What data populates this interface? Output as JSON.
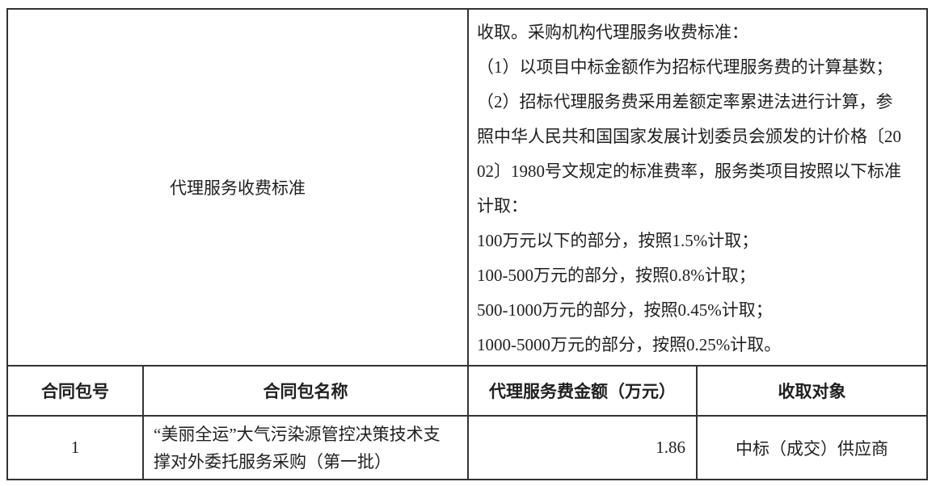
{
  "table": {
    "fee_standard": {
      "label": "代理服务收费标准",
      "lines": [
        "收取。采购机构代理服务收费标准：",
        "（1）以项目中标金额作为招标代理服务费的计算基数；",
        "（2）招标代理服务费采用差额定率累进法进行计算，参",
        "照中华人民共和国国家发展计划委员会颁发的计价格〔20",
        "02〕1980号文规定的标准费率，服务类项目按照以下标准",
        "计取：",
        "100万元以下的部分，按照1.5%计取；",
        "100-500万元的部分，按照0.8%计取；",
        "500-1000万元的部分，按照0.45%计取；",
        "1000-5000万元的部分，按照0.25%计取。"
      ]
    },
    "headers": {
      "package_no": "合同包号",
      "package_name": "合同包名称",
      "fee_amount": "代理服务费金额（万元）",
      "charge_target": "收取对象"
    },
    "rows": [
      {
        "package_no": "1",
        "package_name": "“美丽全运”大气污染源管控决策技术支撑对外委托服务采购（第一批）",
        "fee_amount": "1.86",
        "charge_target": "中标（成交）供应商"
      }
    ]
  },
  "colors": {
    "border": "#333333",
    "text": "#1f1f1f",
    "background": "#ffffff"
  }
}
